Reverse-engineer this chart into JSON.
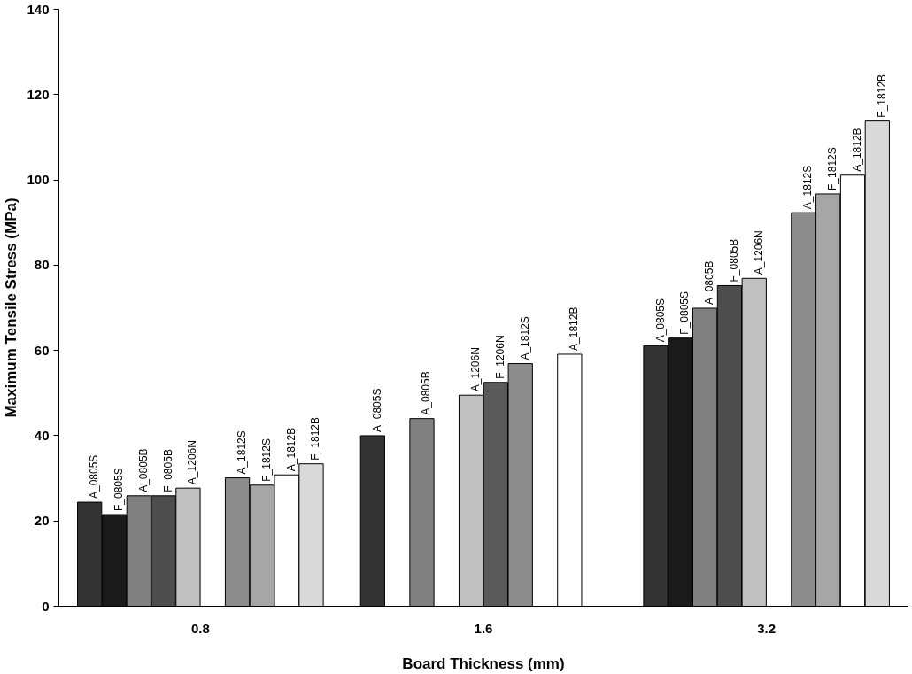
{
  "chart_data": {
    "type": "bar",
    "xlabel": "Board Thickness (mm)",
    "ylabel": "Maximum Tensile Stress (MPa)",
    "categories": [
      "0.8",
      "1.6",
      "3.2"
    ],
    "ylim": [
      0,
      140
    ],
    "yticks": [
      0,
      20,
      40,
      60,
      80,
      100,
      120,
      140
    ],
    "grid": false,
    "series": [
      {
        "name": "A_0805S",
        "color": "#333333",
        "values": [
          24.4,
          40.0,
          61.1
        ]
      },
      {
        "name": "F_0805S",
        "color": "#1a1a1a",
        "values": [
          21.5,
          null,
          62.9
        ]
      },
      {
        "name": "A_0805B",
        "color": "#808080",
        "values": [
          25.9,
          44.0,
          69.9
        ]
      },
      {
        "name": "F_0805B",
        "color": "#4d4d4d",
        "values": [
          25.9,
          null,
          75.2
        ]
      },
      {
        "name": "A_1206N",
        "color": "#c0c0c0",
        "values": [
          27.7,
          49.5,
          76.9
        ]
      },
      {
        "name": "F_1206N",
        "color": "#5a5a5a",
        "values": [
          null,
          52.5,
          null
        ]
      },
      {
        "name": "A_1812S",
        "color": "#8c8c8c",
        "values": [
          30.1,
          56.9,
          92.3
        ]
      },
      {
        "name": "F_1812S",
        "color": "#a6a6a6",
        "values": [
          28.4,
          null,
          96.7
        ]
      },
      {
        "name": "A_1812B",
        "color": "#ffffff",
        "values": [
          30.8,
          59.1,
          101.1
        ]
      },
      {
        "name": "F_1812B",
        "color": "#d9d9d9",
        "values": [
          33.4,
          null,
          113.8
        ]
      }
    ]
  }
}
